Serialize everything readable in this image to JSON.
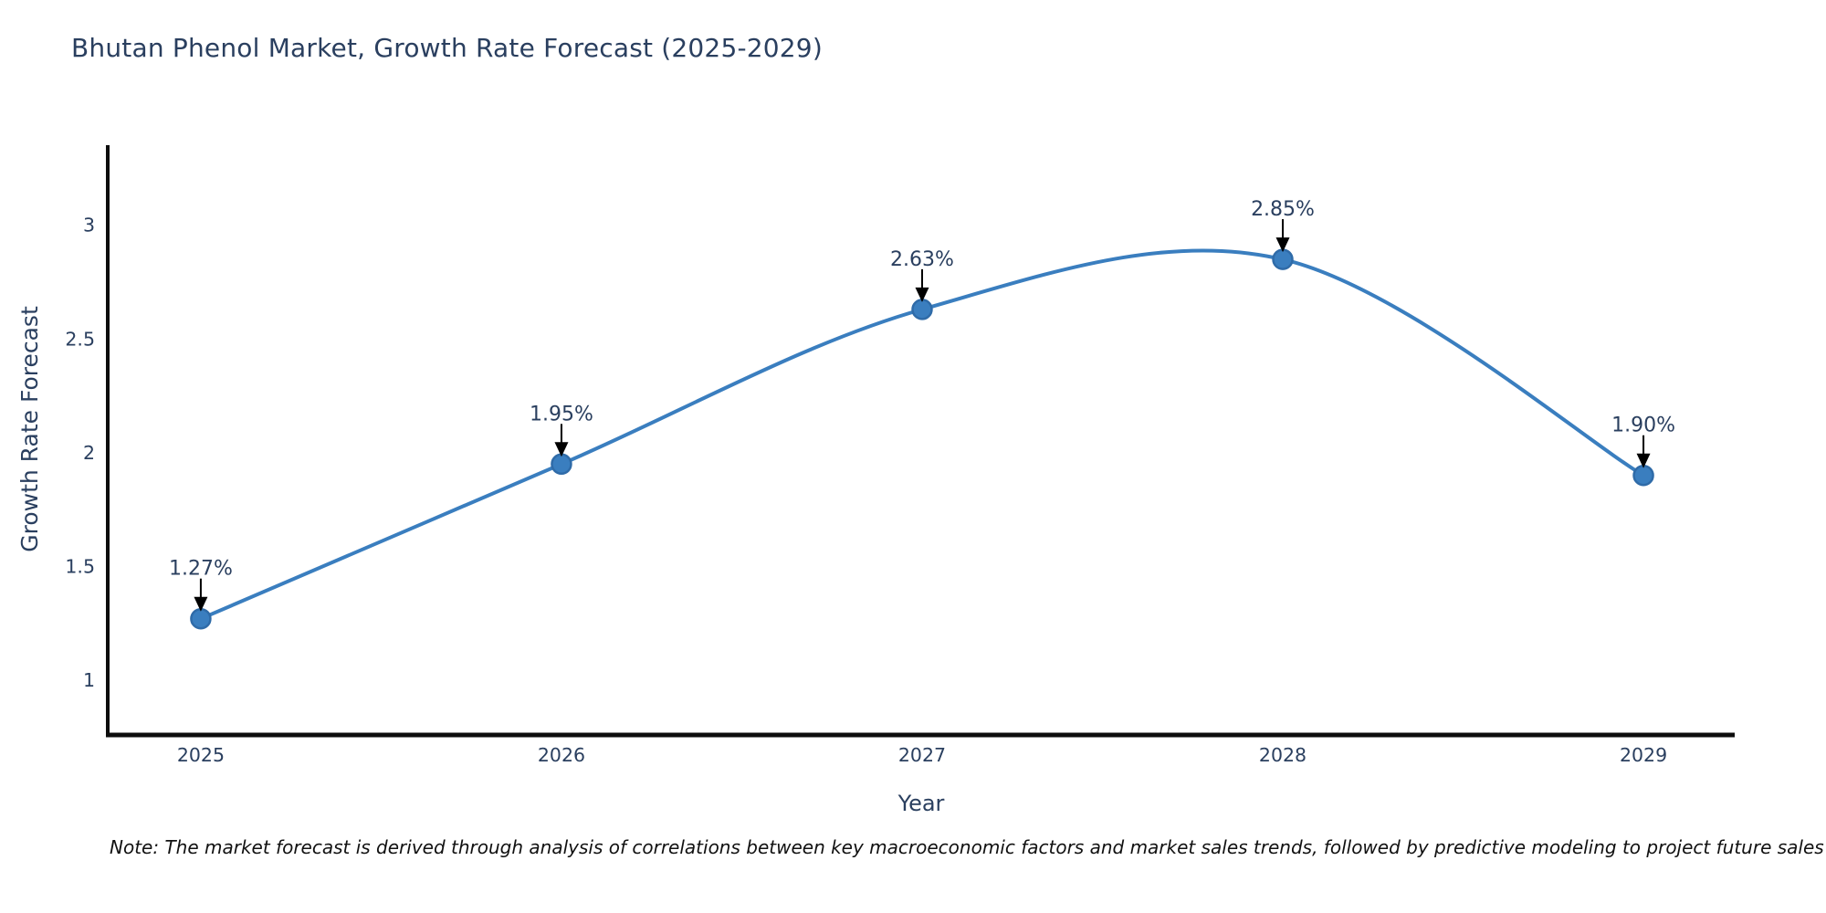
{
  "note": {
    "text": "Note: The market forecast is derived through analysis of correlations between key macroeconomic factors and market sales trends, followed by predictive modeling to project future sales"
  },
  "chart_data": {
    "type": "line",
    "line_shape": "spline",
    "title": "Bhutan Phenol Market, Growth Rate Forecast (2025-2029)",
    "xlabel": "Year",
    "ylabel": "Growth Rate Forecast",
    "x": [
      2025,
      2026,
      2027,
      2028,
      2029
    ],
    "x_labels": [
      "2025",
      "2026",
      "2027",
      "2028",
      "2029"
    ],
    "series": [
      {
        "name": "Growth Rate Forecast",
        "values": [
          1.27,
          1.95,
          2.63,
          2.85,
          1.9
        ]
      }
    ],
    "point_labels": [
      "1.27%",
      "1.95%",
      "2.63%",
      "2.85%",
      "1.90%"
    ],
    "yticks": [
      1,
      1.5,
      2,
      2.5,
      3
    ],
    "ytick_labels": [
      "1",
      "1.5",
      "2",
      "2.5",
      "3"
    ],
    "xlim": [
      2024.742,
      2029.253
    ],
    "ylim": [
      0.759,
      3.352
    ],
    "grid": false,
    "legend_position": "none",
    "colors": {
      "line": "#3a7ebf",
      "marker_fill": "#3a7ebf",
      "marker_edge": "#2f6ba8",
      "axis_line": "#0d0d0d",
      "axis_text": "#2a3f5f",
      "annotation_text": "#2a3f5f",
      "annotation_arrow": "#000000",
      "background": "#ffffff"
    }
  }
}
